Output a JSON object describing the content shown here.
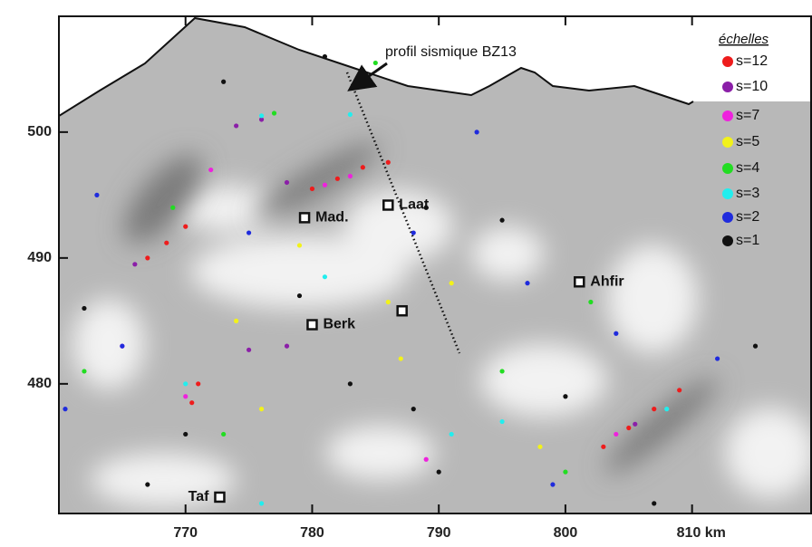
{
  "chart_data": {
    "type": "scatter",
    "annotation": "profil sismique BZ13",
    "legend_title": "échelles",
    "xlim": [
      760,
      819.4
    ],
    "ylim": [
      469.7,
      509.2
    ],
    "xticks": [
      770,
      780,
      790,
      800,
      {
        "value": 810,
        "label": "810 km"
      }
    ],
    "yticks": [
      480,
      490,
      500
    ],
    "places": [
      {
        "name": "Mad.",
        "x": 779.4,
        "y": 493.2
      },
      {
        "name": "Laat",
        "x": 786.0,
        "y": 494.2
      },
      {
        "name": "Ahfir",
        "x": 801.1,
        "y": 488.1
      },
      {
        "name": "Berk",
        "x": 780.0,
        "y": 484.7
      },
      {
        "name": null,
        "x": 787.1,
        "y": 485.8
      },
      {
        "name": "Taf",
        "x": 772.7,
        "y": 471.0
      }
    ],
    "series": [
      {
        "name": "s=12",
        "color": "#ee1c1c",
        "x": [
          767,
          768.5,
          770,
          780,
          782,
          784,
          786,
          771,
          770.5,
          803,
          805,
          807,
          809
        ],
        "y": [
          490,
          491.2,
          492.5,
          495.5,
          496.3,
          497.2,
          497.6,
          480,
          478.5,
          475,
          476.5,
          478,
          479.5
        ]
      },
      {
        "name": "s=10",
        "color": "#8b1fa8",
        "x": [
          774,
          776,
          778,
          766,
          805.5,
          775,
          778
        ],
        "y": [
          500.5,
          501,
          496,
          489.5,
          476.8,
          482.7,
          483
        ]
      },
      {
        "name": "s=7",
        "color": "#ee22dd",
        "x": [
          772,
          781,
          783,
          770,
          789,
          804,
          765
        ],
        "y": [
          497,
          495.8,
          496.5,
          479,
          474,
          476,
          483
        ]
      },
      {
        "name": "s=5",
        "color": "#f2f21a",
        "x": [
          779,
          786,
          791,
          774,
          787,
          798,
          776
        ],
        "y": [
          491,
          486.5,
          488,
          485,
          482,
          475,
          478
        ]
      },
      {
        "name": "s=4",
        "color": "#22dd22",
        "x": [
          769,
          777,
          785,
          773,
          795,
          802,
          762,
          800
        ],
        "y": [
          494,
          501.5,
          505.5,
          476,
          481,
          486.5,
          481,
          473
        ]
      },
      {
        "name": "s=3",
        "color": "#22eeee",
        "x": [
          776,
          783,
          781,
          770,
          791,
          776,
          795,
          808
        ],
        "y": [
          501.3,
          501.4,
          488.5,
          480,
          476,
          470.5,
          477,
          478
        ]
      },
      {
        "name": "s=2",
        "color": "#1f2bdd",
        "x": [
          763,
          765,
          775,
          788,
          797,
          804,
          812,
          760.5,
          793,
          799
        ],
        "y": [
          495,
          483,
          492,
          492,
          488,
          484,
          482,
          478,
          500,
          472
        ]
      },
      {
        "name": "s=1",
        "color": "#111111",
        "x": [
          762,
          767,
          773,
          781,
          789,
          795,
          800,
          815,
          807,
          783,
          788,
          770,
          790,
          779
        ],
        "y": [
          486,
          472,
          504,
          506,
          494,
          493,
          479,
          483,
          470.5,
          480,
          478,
          476,
          473,
          487
        ]
      }
    ]
  }
}
